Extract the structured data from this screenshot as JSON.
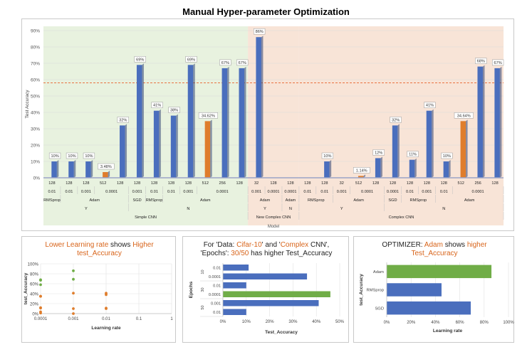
{
  "title": "Manual Hyper-parameter Optimization",
  "chart_data": [
    {
      "type": "bar",
      "title": "Manual Hyper-parameter Optimization",
      "xlabel": "Model",
      "ylabel": "Test Accuracy",
      "ylim": [
        0,
        90
      ],
      "yticks": [
        "0%",
        "10%",
        "20%",
        "30%",
        "40%",
        "50%",
        "60%",
        "70%",
        "80%",
        "90%"
      ],
      "reference_line": 58,
      "bars": [
        {
          "value": 10,
          "label": "10%",
          "color": "blue"
        },
        {
          "value": 10,
          "label": "10%",
          "color": "blue"
        },
        {
          "value": 10,
          "label": "10%",
          "color": "blue"
        },
        {
          "value": 3.48,
          "label": "3.48%",
          "color": "orange"
        },
        {
          "value": 32,
          "label": "32%",
          "color": "blue"
        },
        {
          "value": 69,
          "label": "69%",
          "color": "blue"
        },
        {
          "value": 41,
          "label": "41%",
          "color": "blue"
        },
        {
          "value": 38,
          "label": "38%",
          "color": "blue"
        },
        {
          "value": 69,
          "label": "69%",
          "color": "blue"
        },
        {
          "value": 34.62,
          "label": "34.62%",
          "color": "orange"
        },
        {
          "value": 67,
          "label": "67%",
          "color": "blue"
        },
        {
          "value": 67,
          "label": "67%",
          "color": "blue"
        },
        {
          "value": 86,
          "label": "86%",
          "color": "blue"
        },
        {
          "value": 0,
          "label": "",
          "color": "blue"
        },
        {
          "value": 0,
          "label": "",
          "color": "blue"
        },
        {
          "value": 0,
          "label": "",
          "color": "blue"
        },
        {
          "value": 10,
          "label": "10%",
          "color": "blue"
        },
        {
          "value": 0,
          "label": "",
          "color": "blue"
        },
        {
          "value": 1.14,
          "label": "1.14%",
          "color": "orange"
        },
        {
          "value": 12,
          "label": "12%",
          "color": "blue"
        },
        {
          "value": 32,
          "label": "32%",
          "color": "blue"
        },
        {
          "value": 11,
          "label": "11%",
          "color": "blue"
        },
        {
          "value": 41,
          "label": "41%",
          "color": "blue"
        },
        {
          "value": 10,
          "label": "10%",
          "color": "blue"
        },
        {
          "value": 34.64,
          "label": "34.64%",
          "color": "orange"
        },
        {
          "value": 68,
          "label": "68%",
          "color": "blue"
        },
        {
          "value": 67,
          "label": "67%",
          "color": "blue"
        }
      ],
      "batch_row": [
        "128",
        "128",
        "128",
        "512",
        "128",
        "128",
        "128",
        "128",
        "128",
        "512",
        "256",
        "128",
        "32",
        "128",
        "128",
        "128",
        "128",
        "32",
        "512",
        "128",
        "128",
        "128",
        "128",
        "128",
        "512",
        "256",
        "128"
      ],
      "lr_groups": [
        {
          "label": "0.01",
          "from": 0,
          "to": 0
        },
        {
          "label": "0.01",
          "from": 1,
          "to": 1
        },
        {
          "label": "0.001",
          "from": 2,
          "to": 2
        },
        {
          "label": "0.0001",
          "from": 3,
          "to": 4
        },
        {
          "label": "0.001",
          "from": 5,
          "to": 5
        },
        {
          "label": "0.01",
          "from": 6,
          "to": 6
        },
        {
          "label": "0.01",
          "from": 7,
          "to": 7
        },
        {
          "label": "0.001",
          "from": 8,
          "to": 8
        },
        {
          "label": "0.0001",
          "from": 9,
          "to": 11
        },
        {
          "label": "0.001",
          "from": 12,
          "to": 12
        },
        {
          "label": "0.0001",
          "from": 13,
          "to": 13
        },
        {
          "label": "0.0001",
          "from": 14,
          "to": 14
        },
        {
          "label": "0.01",
          "from": 15,
          "to": 15
        },
        {
          "label": "0.01",
          "from": 16,
          "to": 16
        },
        {
          "label": "0.001",
          "from": 17,
          "to": 17
        },
        {
          "label": "0.0001",
          "from": 18,
          "to": 19
        },
        {
          "label": "0.0001",
          "from": 20,
          "to": 20
        },
        {
          "label": "0.01",
          "from": 21,
          "to": 21
        },
        {
          "label": "0.001",
          "from": 22,
          "to": 22
        },
        {
          "label": "0.01",
          "from": 23,
          "to": 23
        },
        {
          "label": "0.0001",
          "from": 24,
          "to": 26
        }
      ],
      "optimizer_groups": [
        {
          "label": "RMSprop",
          "from": 0,
          "to": 0
        },
        {
          "label": "Adam",
          "from": 1,
          "to": 4
        },
        {
          "label": "SGD",
          "from": 5,
          "to": 5
        },
        {
          "label": "RMSprop",
          "from": 6,
          "to": 6
        },
        {
          "label": "Adam",
          "from": 7,
          "to": 11
        },
        {
          "label": "Adam",
          "from": 12,
          "to": 13
        },
        {
          "label": "Adam",
          "from": 14,
          "to": 14
        },
        {
          "label": "RMSprop",
          "from": 15,
          "to": 16
        },
        {
          "label": "Adam",
          "from": 17,
          "to": 19
        },
        {
          "label": "SGD",
          "from": 20,
          "to": 20
        },
        {
          "label": "RMSprop",
          "from": 21,
          "to": 22
        },
        {
          "label": "Adam",
          "from": 23,
          "to": 26
        }
      ],
      "flag_groups": [
        {
          "label": "Y",
          "from": 0,
          "to": 4
        },
        {
          "label": "N",
          "from": 5,
          "to": 11
        },
        {
          "label": "Y",
          "from": 12,
          "to": 13
        },
        {
          "label": "N",
          "from": 14,
          "to": 14
        },
        {
          "label": "Y",
          "from": 15,
          "to": 19
        },
        {
          "label": "N",
          "from": 20,
          "to": 26
        }
      ],
      "model_groups": [
        {
          "label": "Simple CNN",
          "from": 0,
          "to": 11,
          "bg": "#e8f2df"
        },
        {
          "label": "New Complex CNN",
          "from": 12,
          "to": 14,
          "bg": "#f8e4d7"
        },
        {
          "label": "Complex CNN",
          "from": 15,
          "to": 26,
          "bg": "#f8e4d7"
        }
      ]
    },
    {
      "type": "scatter",
      "title": "Lower Learning rate shows Higher test_Accuracy",
      "title_parts": [
        "Lower Learning rate",
        " shows ",
        "Higher",
        " test_Accuracy"
      ],
      "xlabel": "Learning rate",
      "ylabel": "test_Accuracy",
      "xscale": "log",
      "xlim": [
        0.0001,
        1
      ],
      "ylim": [
        0,
        100
      ],
      "xticks": [
        "0.0001",
        "0.001",
        "0.01",
        "0.1",
        "1"
      ],
      "yticks": [
        "0%",
        "20%",
        "40%",
        "60%",
        "80%",
        "100%"
      ],
      "points": [
        {
          "x": 0.0001,
          "y": 67,
          "color": "green"
        },
        {
          "x": 0.0001,
          "y": 68,
          "color": "green"
        },
        {
          "x": 0.0001,
          "y": 58,
          "color": "green"
        },
        {
          "x": 0.0001,
          "y": 35,
          "color": "orange"
        },
        {
          "x": 0.0001,
          "y": 34.6,
          "color": "orange"
        },
        {
          "x": 0.0001,
          "y": 12,
          "color": "orange"
        },
        {
          "x": 0.0001,
          "y": 11,
          "color": "orange"
        },
        {
          "x": 0.0001,
          "y": 3.5,
          "color": "orange"
        },
        {
          "x": 0.0001,
          "y": 1.1,
          "color": "orange"
        },
        {
          "x": 0.001,
          "y": 86,
          "color": "green"
        },
        {
          "x": 0.001,
          "y": 69,
          "color": "green"
        },
        {
          "x": 0.001,
          "y": 41,
          "color": "orange"
        },
        {
          "x": 0.001,
          "y": 10,
          "color": "orange"
        },
        {
          "x": 0.001,
          "y": 0,
          "color": "orange"
        },
        {
          "x": 0.01,
          "y": 41,
          "color": "orange"
        },
        {
          "x": 0.01,
          "y": 38,
          "color": "orange"
        },
        {
          "x": 0.01,
          "y": 11,
          "color": "orange"
        },
        {
          "x": 0.01,
          "y": 10,
          "color": "orange"
        }
      ]
    },
    {
      "type": "bar",
      "orientation": "horizontal",
      "title": "For 'Data: Cifar-10' and 'Complex CNN', 'Epochs': 30/50 has higher Test_Accuracy",
      "title_line1": [
        "For 'Data: ",
        "Cifar-10",
        "' and '",
        "Complex",
        " CNN',"
      ],
      "title_line2": [
        "'Epochs': ",
        "30/50",
        " has higher Test_Accuracy"
      ],
      "xlabel": "Test_Accuracy",
      "ylabel": "Epochs",
      "xlim": [
        0,
        50
      ],
      "xticks": [
        "0%",
        "10%",
        "20%",
        "30%",
        "40%",
        "50%"
      ],
      "groups": [
        {
          "label": "10",
          "from": 0,
          "to": 1
        },
        {
          "label": "30",
          "from": 2,
          "to": 3
        },
        {
          "label": "50",
          "from": 4,
          "to": 5
        }
      ],
      "categories": [
        "0.01",
        "0.0001",
        "0.01",
        "0.0001",
        "0.001",
        "0.01"
      ],
      "values": [
        11,
        36,
        10,
        46,
        41,
        10
      ],
      "colors": [
        "blue",
        "blue",
        "blue",
        "green",
        "blue",
        "blue"
      ]
    },
    {
      "type": "bar",
      "orientation": "horizontal",
      "title": "OPTIMIZER: Adam shows higher Test_Accuracy",
      "title_parts": [
        "OPTIMIZER: ",
        "Adam",
        " shows ",
        "higher",
        " Test_Accuracy"
      ],
      "xlabel": "Learning rate",
      "ylabel": "test_Accuracy",
      "xlim": [
        0,
        100
      ],
      "xticks": [
        "0%",
        "20%",
        "40%",
        "60%",
        "80%",
        "100%"
      ],
      "categories": [
        "Adam",
        "RMSprop",
        "SGD"
      ],
      "values": [
        86,
        45,
        69
      ],
      "colors": [
        "green",
        "blue",
        "blue"
      ]
    }
  ],
  "colors": {
    "blue": "#4a6ebd",
    "orange": "#df7d2c",
    "green": "#70ad47",
    "refline": "#e8622c"
  }
}
